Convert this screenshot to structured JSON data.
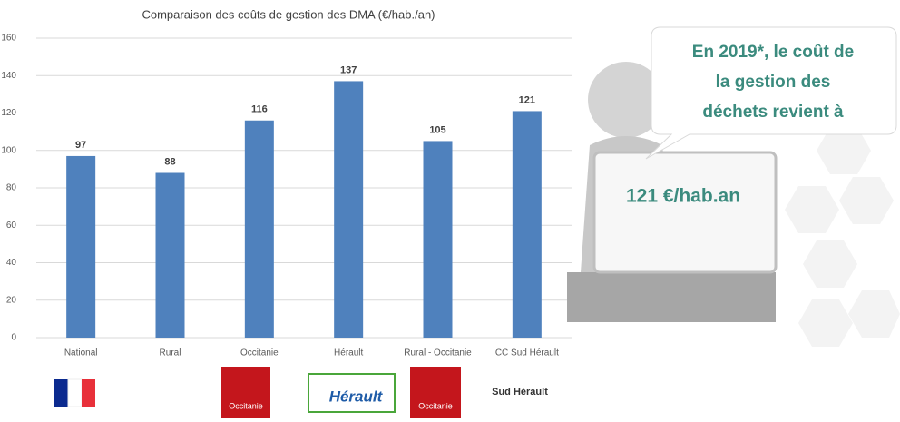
{
  "chart_data": {
    "type": "bar",
    "title": "Comparaison des coûts de gestion des DMA (€/hab./an)",
    "categories": [
      "National",
      "Rural",
      "Occitanie",
      "Hérault",
      "Rural - Occitanie",
      "CC Sud Hérault"
    ],
    "values": [
      97,
      88,
      116,
      137,
      105,
      121
    ],
    "color": "#4f81bd",
    "ylim": [
      0,
      160
    ],
    "yticks": [
      0,
      20,
      40,
      60,
      80,
      100,
      120,
      140,
      160
    ],
    "grid": true
  },
  "callout": {
    "lines": [
      "En 2019*, le coût de",
      "la gestion des",
      "déchets revient à"
    ],
    "board": "121 €/hab.an"
  },
  "logos": [
    "Occitanie",
    "Hérault",
    "Occitanie",
    "Sud Hérault"
  ]
}
